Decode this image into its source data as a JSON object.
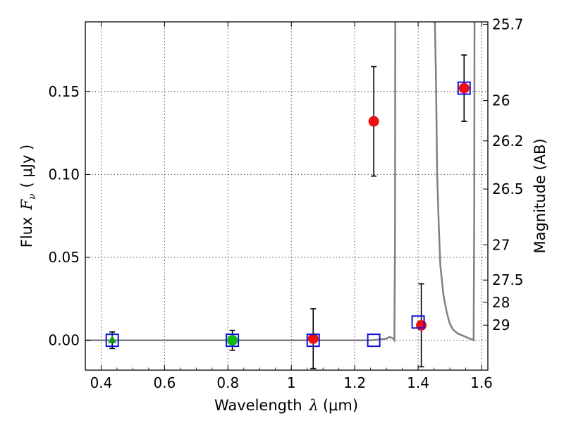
{
  "chart_data": {
    "type": "scatter",
    "title": "",
    "xlabel": "Wavelength",
    "xlabel_symbol": "λ",
    "xlabel_unit": "(μm)",
    "ylabel": "Flux",
    "ylabel_symbol": "F",
    "ylabel_subscript": "ν",
    "ylabel_unit": "( μJy )",
    "y2label": "Magnitude (AB)",
    "xlim": [
      0.35,
      1.62
    ],
    "ylim": [
      -0.018,
      0.192
    ],
    "grid": true,
    "x_ticks": [
      {
        "value": 0.4,
        "label": "0.4"
      },
      {
        "value": 0.6,
        "label": "0.6"
      },
      {
        "value": 0.8,
        "label": "0.8"
      },
      {
        "value": 1.0,
        "label": "1"
      },
      {
        "value": 1.2,
        "label": "1.2"
      },
      {
        "value": 1.4,
        "label": "1.4"
      },
      {
        "value": 1.6,
        "label": "1.6"
      }
    ],
    "y_ticks": [
      {
        "value": 0.0,
        "label": "0.00"
      },
      {
        "value": 0.05,
        "label": "0.05"
      },
      {
        "value": 0.1,
        "label": "0.10"
      },
      {
        "value": 0.15,
        "label": "0.15"
      }
    ],
    "y2_ticks": [
      {
        "value": 25.7,
        "label": "25.7"
      },
      {
        "value": 26.0,
        "label": "26"
      },
      {
        "value": 26.2,
        "label": "26.2"
      },
      {
        "value": 26.5,
        "label": "26.5"
      },
      {
        "value": 27.0,
        "label": "27"
      },
      {
        "value": 27.5,
        "label": "27.5"
      },
      {
        "value": 28.0,
        "label": "28"
      },
      {
        "value": 29.0,
        "label": "29"
      }
    ],
    "series": [
      {
        "marker": "triangle",
        "color": "#119911",
        "points": [
          {
            "x": 0.435,
            "y": 0.0,
            "err": 0.005
          }
        ]
      },
      {
        "marker": "circle",
        "color": "#11bb11",
        "points": [
          {
            "x": 0.814,
            "y": 0.0,
            "err": 0.006
          }
        ]
      },
      {
        "marker": "circle",
        "color": "#ee1111",
        "points": [
          {
            "x": 1.069,
            "y": 0.001,
            "err": 0.018
          },
          {
            "x": 1.26,
            "y": 0.132,
            "err": 0.033
          },
          {
            "x": 1.41,
            "y": 0.009,
            "err": 0.025
          },
          {
            "x": 1.545,
            "y": 0.152,
            "err": 0.02
          }
        ]
      },
      {
        "marker": "open-square",
        "color": "#1111dd",
        "points": [
          {
            "x": 0.435,
            "y": 0.0
          },
          {
            "x": 0.814,
            "y": 0.0
          },
          {
            "x": 1.069,
            "y": 0.0
          },
          {
            "x": 1.26,
            "y": 0.0
          },
          {
            "x": 1.4,
            "y": 0.011
          },
          {
            "x": 1.545,
            "y": 0.152
          }
        ]
      },
      {
        "type": "line",
        "color": "#808080",
        "points": [
          {
            "x": 0.35,
            "y": 0.0
          },
          {
            "x": 1.25,
            "y": 0.0
          },
          {
            "x": 1.28,
            "y": 0.0005
          },
          {
            "x": 1.3,
            "y": 0.001
          },
          {
            "x": 1.31,
            "y": 0.002
          },
          {
            "x": 1.32,
            "y": 0.0012
          },
          {
            "x": 1.325,
            "y": 0.0
          },
          {
            "x": 1.327,
            "y": 0.06
          },
          {
            "x": 1.328,
            "y": 0.2
          }
        ]
      },
      {
        "type": "line",
        "color": "#808080",
        "points": [
          {
            "x": 1.452,
            "y": 0.2
          },
          {
            "x": 1.456,
            "y": 0.16
          },
          {
            "x": 1.46,
            "y": 0.1
          },
          {
            "x": 1.465,
            "y": 0.07
          },
          {
            "x": 1.47,
            "y": 0.045
          },
          {
            "x": 1.48,
            "y": 0.027
          },
          {
            "x": 1.49,
            "y": 0.017
          },
          {
            "x": 1.5,
            "y": 0.01
          },
          {
            "x": 1.51,
            "y": 0.0065
          },
          {
            "x": 1.525,
            "y": 0.004
          },
          {
            "x": 1.545,
            "y": 0.0025
          },
          {
            "x": 1.56,
            "y": 0.0012
          },
          {
            "x": 1.57,
            "y": 0.0005
          },
          {
            "x": 1.575,
            "y": 0.0
          },
          {
            "x": 1.577,
            "y": 0.08
          },
          {
            "x": 1.578,
            "y": 0.2
          }
        ]
      }
    ]
  }
}
